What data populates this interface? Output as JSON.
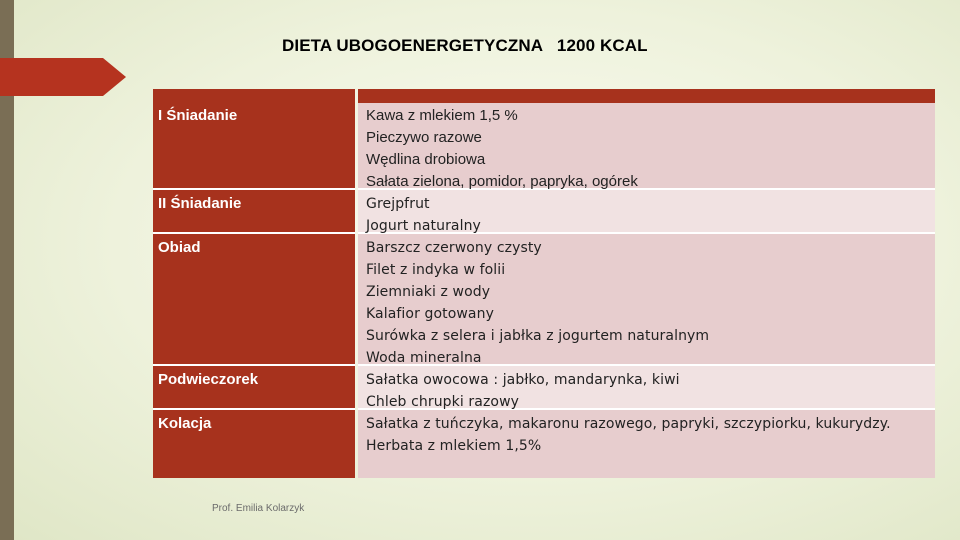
{
  "title": "DIETA UBOGOENERGETYCZNA   1200 KCAL",
  "meals": [
    {
      "name": "I Śniadanie",
      "items": [
        "Kawa z mlekiem 1,5 %",
        "Pieczywo razowe",
        "Wędlina drobiowa",
        "Sałata zielona, pomidor,   papryka, ogórek"
      ]
    },
    {
      "name": "II Śniadanie",
      "items": [
        "Grejpfrut",
        "Jogurt naturalny"
      ]
    },
    {
      "name": "Obiad",
      "items": [
        "Barszcz  czerwony czysty",
        "Filet z indyka  w folii",
        "Ziemniaki z wody",
        "Kalafior gotowany",
        "Surówka z selera i jabłka z jogurtem naturalnym",
        "Woda mineralna"
      ]
    },
    {
      "name": "Podwieczorek",
      "items": [
        "Sałatka owocowa : jabłko, mandarynka, kiwi",
        "Chleb chrupki razowy"
      ]
    },
    {
      "name": "Kolacja",
      "items": [
        "Sałatka z tuńczyka, makaronu razowego,  papryki, szczypiorku, kukurydzy.",
        "Herbata z   mlekiem 1,5%"
      ]
    }
  ],
  "footer": "Prof. Emilia Kolarzyk",
  "colors": {
    "accent": "#a7321d",
    "row_fill": "#e7cdce",
    "row_fill_alt": "#f1e2e2"
  }
}
